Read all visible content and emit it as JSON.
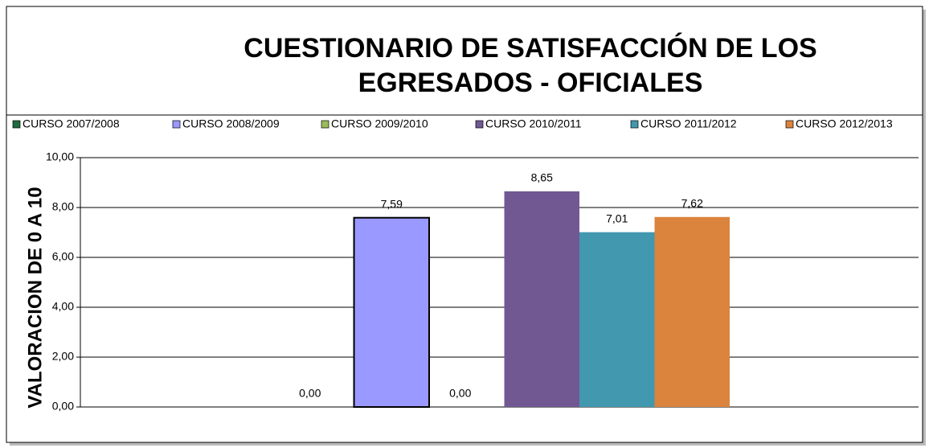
{
  "chart_data": {
    "type": "bar",
    "title": [
      "CUESTIONARIO DE SATISFACCIÓN DE LOS",
      "EGRESADOS - OFICIALES"
    ],
    "y_axis_label": "VALORACION DE 0 A 10",
    "categories": [
      null
    ],
    "series": [
      {
        "name": "CURSO 2007/2008",
        "color": "#1f6b3e",
        "values": [
          0
        ],
        "value_labels": [
          "0,00"
        ]
      },
      {
        "name": "CURSO 2008/2009",
        "color": "#9999ff",
        "values": [
          7.59
        ],
        "value_labels": [
          "7,59"
        ]
      },
      {
        "name": "CURSO 2009/2010",
        "color": "#9bbb59",
        "values": [
          0
        ],
        "value_labels": [
          "0,00"
        ]
      },
      {
        "name": "CURSO 2010/2011",
        "color": "#725893",
        "values": [
          8.65
        ],
        "value_labels": [
          "8,65"
        ]
      },
      {
        "name": "CURSO 2011/2012",
        "color": "#4198af",
        "values": [
          7.01
        ],
        "value_labels": [
          "7,01"
        ]
      },
      {
        "name": "CURSO 2012/2013",
        "color": "#db843d",
        "values": [
          7.62
        ],
        "value_labels": [
          "7,62"
        ]
      }
    ],
    "ylim": [
      0,
      10
    ],
    "yticks": [
      {
        "value": 0,
        "label": "0,00"
      },
      {
        "value": 2,
        "label": "2,00"
      },
      {
        "value": 4,
        "label": "4,00"
      },
      {
        "value": 6,
        "label": "6,00"
      },
      {
        "value": 8,
        "label": "8,00"
      },
      {
        "value": 10,
        "label": "10,00"
      }
    ],
    "grid": true,
    "legend": "top"
  }
}
